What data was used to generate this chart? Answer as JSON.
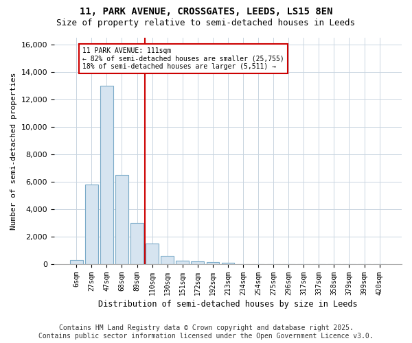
{
  "title_line1": "11, PARK AVENUE, CROSSGATES, LEEDS, LS15 8EN",
  "title_line2": "Size of property relative to semi-detached houses in Leeds",
  "xlabel": "Distribution of semi-detached houses by size in Leeds",
  "ylabel": "Number of semi-detached properties",
  "bar_labels": [
    "6sqm",
    "27sqm",
    "47sqm",
    "68sqm",
    "89sqm",
    "110sqm",
    "130sqm",
    "151sqm",
    "172sqm",
    "192sqm",
    "213sqm",
    "234sqm",
    "254sqm",
    "275sqm",
    "296sqm",
    "317sqm",
    "337sqm",
    "358sqm",
    "379sqm",
    "399sqm",
    "420sqm"
  ],
  "bar_values": [
    300,
    5800,
    13000,
    6500,
    3000,
    1500,
    600,
    250,
    200,
    130,
    100,
    0,
    0,
    0,
    0,
    0,
    0,
    0,
    0,
    0,
    0
  ],
  "bar_color": "#d6e4f0",
  "bar_edge_color": "#7aaac8",
  "vline_color": "#cc0000",
  "annotation_text": "11 PARK AVENUE: 111sqm\n← 82% of semi-detached houses are smaller (25,755)\n18% of semi-detached houses are larger (5,511) →",
  "annotation_box_color": "#cc0000",
  "annotation_text_color": "#000000",
  "ylim": [
    0,
    16500
  ],
  "yticks": [
    0,
    2000,
    4000,
    6000,
    8000,
    10000,
    12000,
    14000,
    16000
  ],
  "footer_line1": "Contains HM Land Registry data © Crown copyright and database right 2025.",
  "footer_line2": "Contains public sector information licensed under the Open Government Licence v3.0.",
  "background_color": "#ffffff",
  "plot_bg_color": "#ffffff",
  "grid_color": "#c8d4e0",
  "title_fontsize": 10,
  "subtitle_fontsize": 9,
  "footer_fontsize": 7
}
